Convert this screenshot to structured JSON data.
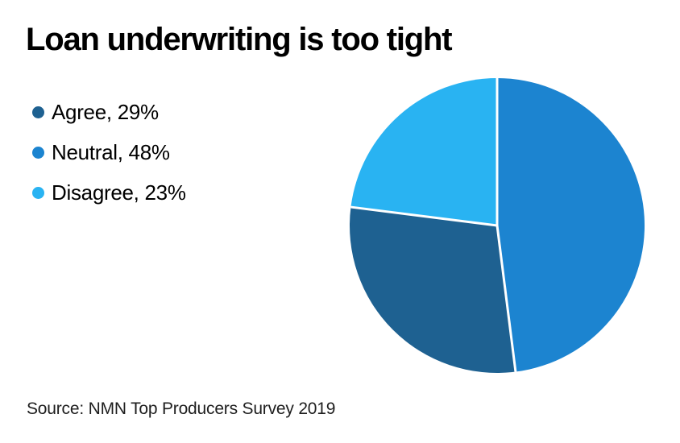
{
  "page": {
    "title": "Loan underwriting is too tight",
    "source": "Source: NMN Top Producers Survey 2019"
  },
  "colors": {
    "background": "#ffffff",
    "title_text": "#000000",
    "source_text": "#1e1e1e",
    "agree_blue": "#1e6191",
    "neutral_blue": "#1c84d0",
    "disagree_blue": "#29b3f2",
    "divider_white": "#ffffff"
  },
  "legend": {
    "items": [
      {
        "label": "Agree, 29%",
        "color": "#1e6191"
      },
      {
        "label": "Neutral, 48%",
        "color": "#1c84d0"
      },
      {
        "label": "Disagree, 23%",
        "color": "#29b3f2"
      }
    ]
  },
  "chart_data": {
    "type": "pie",
    "title": "Loan underwriting is too tight",
    "categories": [
      "Agree",
      "Neutral",
      "Disagree"
    ],
    "values": [
      29,
      48,
      23
    ],
    "unit": "%",
    "slice_colors": [
      "#1e6191",
      "#1c84d0",
      "#29b3f2"
    ],
    "draw_order": [
      "Neutral",
      "Agree",
      "Disagree"
    ],
    "start_angle_deg": 0,
    "direction": "clockwise",
    "divider_color": "#ffffff",
    "divider_width": 3,
    "legend_position": "upper-left",
    "source": "Source: NMN Top Producers Survey 2019"
  }
}
